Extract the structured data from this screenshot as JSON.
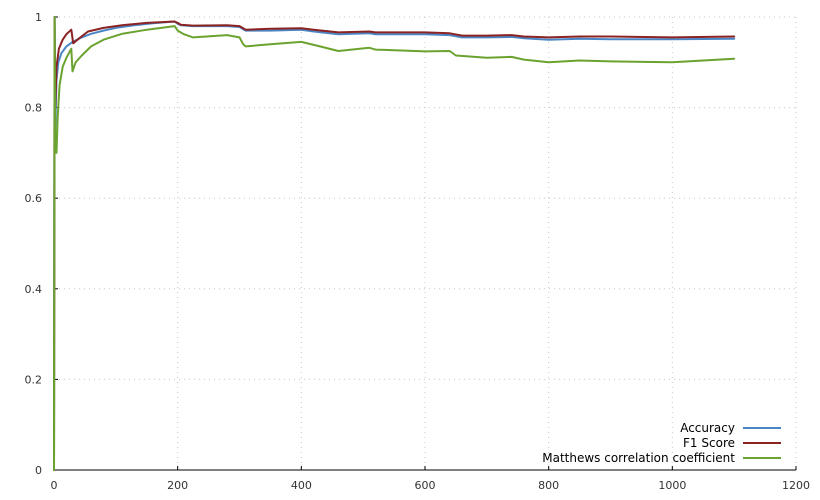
{
  "chart_data": {
    "type": "line",
    "title": "",
    "xlabel": "",
    "ylabel": "",
    "xlim": [
      0,
      1200
    ],
    "ylim": [
      0,
      1
    ],
    "x_ticks": [
      0,
      200,
      400,
      600,
      800,
      1000,
      1200
    ],
    "y_ticks": [
      0,
      0.2,
      0.4,
      0.6,
      0.8,
      1
    ],
    "x_tick_labels": [
      "0",
      "200",
      "400",
      "600",
      "800",
      "1000",
      "1200"
    ],
    "y_tick_labels": [
      "0",
      "0.2",
      "0.4",
      "0.6",
      "0.8",
      "1"
    ],
    "grid": true,
    "legend_position": "bottom-right",
    "series": [
      {
        "name": "Accuracy",
        "color": "#4a86c5",
        "points": [
          [
            0,
            0
          ],
          [
            1,
            1
          ],
          [
            2,
            0.75
          ],
          [
            4,
            0.86
          ],
          [
            7,
            0.9
          ],
          [
            12,
            0.92
          ],
          [
            20,
            0.935
          ],
          [
            30,
            0.945
          ],
          [
            45,
            0.955
          ],
          [
            60,
            0.963
          ],
          [
            80,
            0.97
          ],
          [
            100,
            0.976
          ],
          [
            130,
            0.982
          ],
          [
            160,
            0.986
          ],
          [
            195,
            0.99
          ],
          [
            200,
            0.985
          ],
          [
            205,
            0.982
          ],
          [
            225,
            0.98
          ],
          [
            280,
            0.98
          ],
          [
            300,
            0.978
          ],
          [
            310,
            0.97
          ],
          [
            350,
            0.97
          ],
          [
            400,
            0.972
          ],
          [
            420,
            0.968
          ],
          [
            460,
            0.962
          ],
          [
            510,
            0.964
          ],
          [
            520,
            0.962
          ],
          [
            600,
            0.962
          ],
          [
            640,
            0.96
          ],
          [
            660,
            0.955
          ],
          [
            700,
            0.955
          ],
          [
            740,
            0.956
          ],
          [
            760,
            0.953
          ],
          [
            800,
            0.95
          ],
          [
            850,
            0.952
          ],
          [
            900,
            0.951
          ],
          [
            1000,
            0.951
          ],
          [
            1100,
            0.952
          ]
        ]
      },
      {
        "name": "F1 Score",
        "color": "#8b2323",
        "points": [
          [
            0,
            0
          ],
          [
            1,
            1
          ],
          [
            2,
            0.8
          ],
          [
            4,
            0.89
          ],
          [
            8,
            0.93
          ],
          [
            14,
            0.95
          ],
          [
            20,
            0.962
          ],
          [
            28,
            0.972
          ],
          [
            31,
            0.942
          ],
          [
            40,
            0.952
          ],
          [
            55,
            0.968
          ],
          [
            80,
            0.976
          ],
          [
            110,
            0.982
          ],
          [
            150,
            0.987
          ],
          [
            195,
            0.99
          ],
          [
            200,
            0.987
          ],
          [
            205,
            0.983
          ],
          [
            225,
            0.981
          ],
          [
            280,
            0.982
          ],
          [
            300,
            0.98
          ],
          [
            310,
            0.972
          ],
          [
            350,
            0.974
          ],
          [
            400,
            0.975
          ],
          [
            420,
            0.972
          ],
          [
            460,
            0.966
          ],
          [
            510,
            0.968
          ],
          [
            520,
            0.966
          ],
          [
            600,
            0.966
          ],
          [
            640,
            0.964
          ],
          [
            660,
            0.959
          ],
          [
            700,
            0.959
          ],
          [
            740,
            0.96
          ],
          [
            760,
            0.957
          ],
          [
            800,
            0.955
          ],
          [
            850,
            0.957
          ],
          [
            900,
            0.957
          ],
          [
            1000,
            0.955
          ],
          [
            1100,
            0.957
          ]
        ]
      },
      {
        "name": "Matthews correlation coefficient",
        "color": "#6aa32f",
        "points": [
          [
            0,
            0
          ],
          [
            1,
            1
          ],
          [
            2,
            0.72
          ],
          [
            4,
            0.7
          ],
          [
            6,
            0.78
          ],
          [
            9,
            0.85
          ],
          [
            14,
            0.89
          ],
          [
            20,
            0.91
          ],
          [
            28,
            0.93
          ],
          [
            30,
            0.88
          ],
          [
            35,
            0.9
          ],
          [
            45,
            0.915
          ],
          [
            60,
            0.935
          ],
          [
            80,
            0.95
          ],
          [
            110,
            0.963
          ],
          [
            150,
            0.972
          ],
          [
            195,
            0.98
          ],
          [
            200,
            0.97
          ],
          [
            210,
            0.962
          ],
          [
            225,
            0.955
          ],
          [
            280,
            0.96
          ],
          [
            300,
            0.955
          ],
          [
            306,
            0.94
          ],
          [
            310,
            0.935
          ],
          [
            350,
            0.94
          ],
          [
            400,
            0.945
          ],
          [
            430,
            0.935
          ],
          [
            460,
            0.925
          ],
          [
            510,
            0.932
          ],
          [
            520,
            0.928
          ],
          [
            600,
            0.924
          ],
          [
            640,
            0.925
          ],
          [
            650,
            0.915
          ],
          [
            700,
            0.91
          ],
          [
            740,
            0.912
          ],
          [
            760,
            0.906
          ],
          [
            800,
            0.9
          ],
          [
            850,
            0.904
          ],
          [
            900,
            0.902
          ],
          [
            1000,
            0.9
          ],
          [
            1100,
            0.908
          ]
        ]
      }
    ]
  }
}
